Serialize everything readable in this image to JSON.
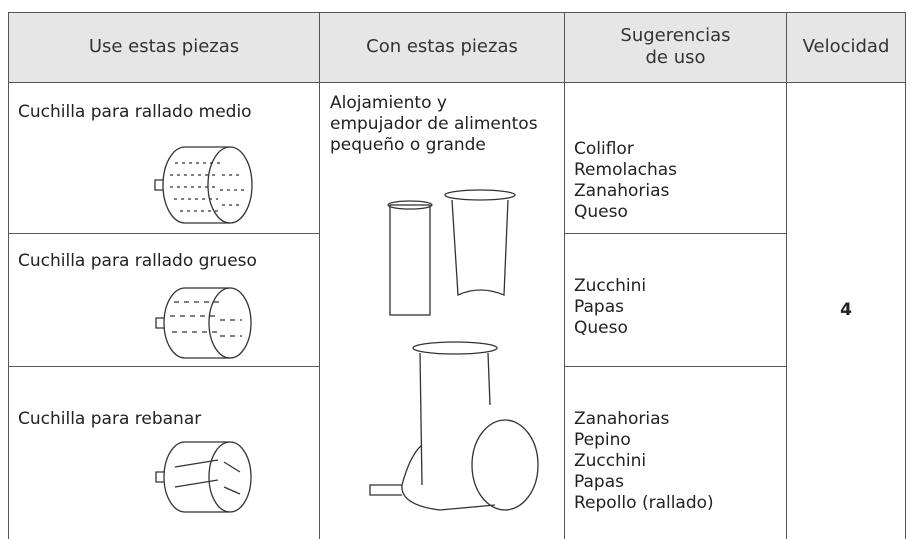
{
  "table": {
    "headers": [
      "Use estas piezas",
      "Con estas piezas",
      "Sugerencias de uso",
      "Velocidad"
    ],
    "with_parts": [
      "Alojamiento y",
      "empujador de alimentos",
      "pequeño o grande"
    ],
    "rows": [
      {
        "part": "Cuchilla para rallado medio",
        "suggestions": [
          "Coliflor",
          "Remolachas",
          "Zanahorias",
          "Queso"
        ]
      },
      {
        "part": "Cuchilla para rallado grueso",
        "suggestions": [
          "Zucchini",
          "Papas",
          "Queso"
        ]
      },
      {
        "part": "Cuchilla para rebanar",
        "suggestions": [
          "Zanahorias",
          "Pepino",
          "Zucchini",
          "Papas",
          "Repollo (rallado)"
        ]
      }
    ],
    "speed": "4"
  }
}
